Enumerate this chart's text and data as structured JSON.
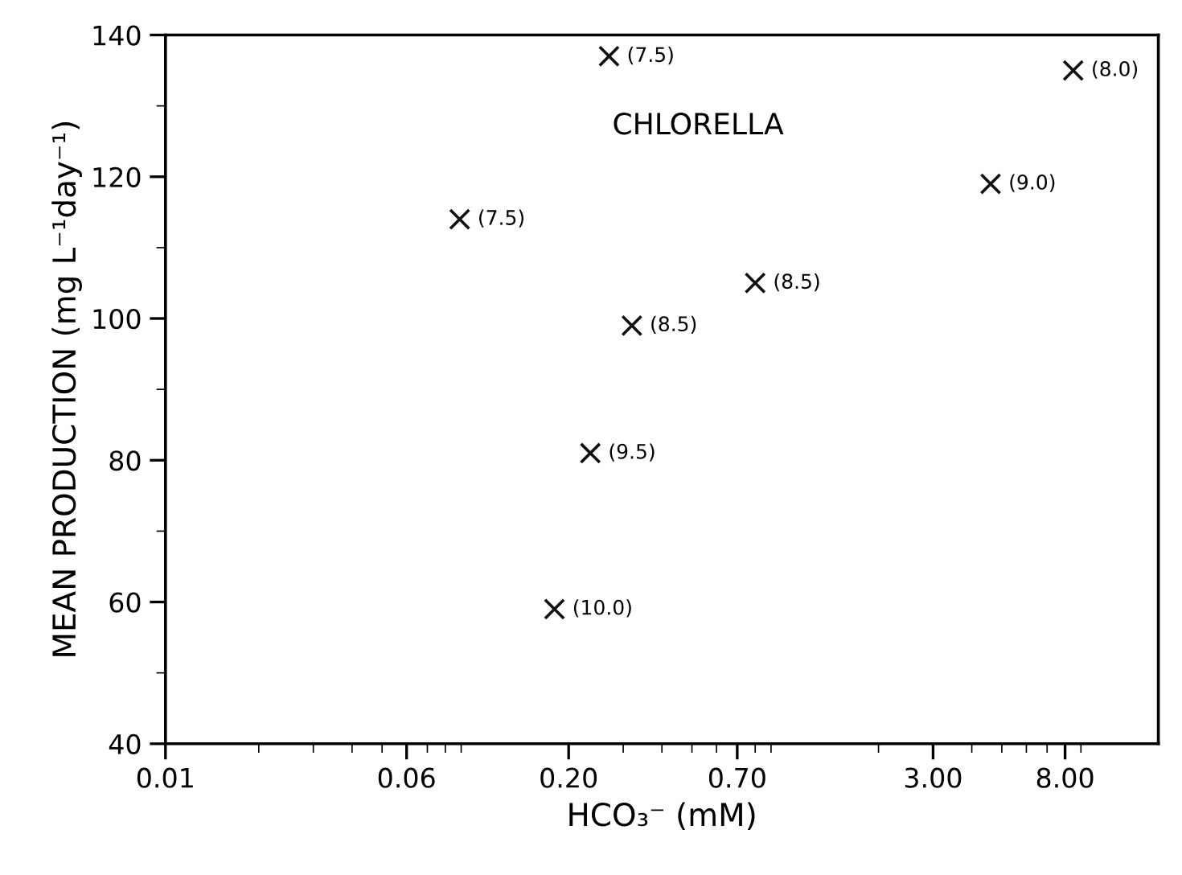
{
  "chart_data": {
    "type": "scatter",
    "xlabel": "HCO₃⁻ (mM)",
    "ylabel": "MEAN PRODUCTION (mg L⁻¹day⁻¹)",
    "x": [
      0.089,
      0.27,
      0.32,
      0.8,
      0.235,
      0.18,
      4.6,
      8.5
    ],
    "values": [
      114,
      137,
      99,
      105,
      81,
      59,
      119,
      135
    ],
    "color": "#111111",
    "marker": "cross",
    "log": "x",
    "grid": false,
    "xlim": [
      0.01,
      16
    ],
    "xticks": [
      {
        "value": 0.01,
        "label": "0.01"
      },
      {
        "value": 0.06,
        "label": "0.06"
      },
      {
        "value": 0.2,
        "label": "0.20"
      },
      {
        "value": 0.7,
        "label": "0.70"
      },
      {
        "value": 3,
        "label": "3.00"
      },
      {
        "value": 8,
        "label": "8.00"
      }
    ],
    "ylim": [
      40,
      140
    ],
    "yticks": [
      40,
      60,
      80,
      100,
      120,
      140
    ],
    "annotations": [
      "CHLORELLA",
      {
        "text": "(7.5)",
        "x": 0.089,
        "y": 114
      },
      {
        "text": "(7.5)",
        "x": 0.27,
        "y": 137
      },
      {
        "text": "(8.5)",
        "x": 0.32,
        "y": 99
      },
      {
        "text": "(8.5)",
        "x": 0.8,
        "y": 105
      },
      {
        "text": "(9.5)",
        "x": 0.235,
        "y": 81
      },
      {
        "text": "(10.0)",
        "x": 0.18,
        "y": 59
      },
      {
        "text": "(9.0)",
        "x": 4.6,
        "y": 119
      },
      {
        "text": "(8.0)",
        "x": 8.5,
        "y": 135
      }
    ]
  }
}
